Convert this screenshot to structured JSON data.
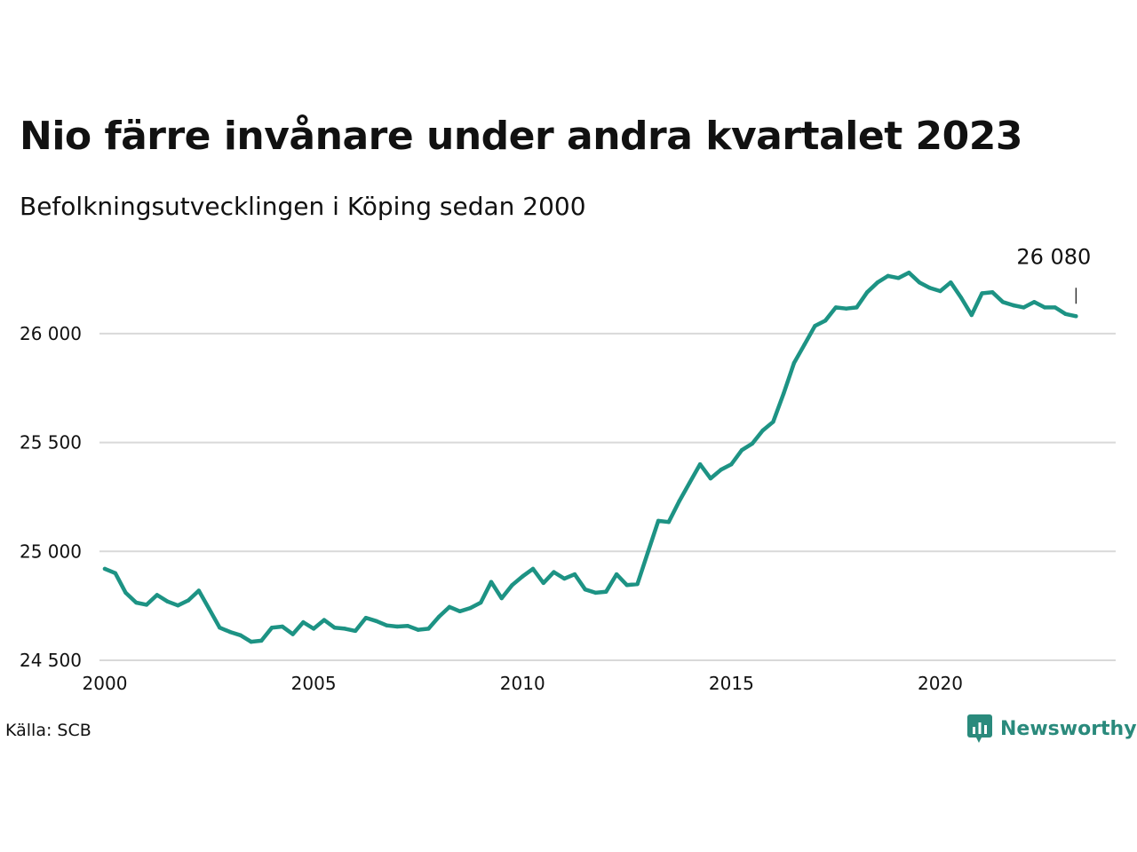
{
  "title": "Nio färre invånare under andra kvartalet 2023",
  "subtitle": "Befolkningsutvecklingen i Köping sedan 2000",
  "source": "Källa: SCB",
  "brand": {
    "name": "Newsworthy",
    "icon": "newsworthy-logo-icon",
    "color": "#2a8a7c"
  },
  "colors": {
    "line": "#1d9384",
    "grid": "#d9d9d9",
    "text": "#111111"
  },
  "chart_data": {
    "type": "line",
    "x_unit": "year (quarterly)",
    "xlim": [
      2000,
      2024.2
    ],
    "ylim": [
      24500,
      26350
    ],
    "x_ticks": [
      2000,
      2005,
      2010,
      2015,
      2020
    ],
    "x_tick_labels": [
      "2000",
      "2005",
      "2010",
      "2015",
      "2020"
    ],
    "y_ticks": [
      24500,
      25000,
      25500,
      26000
    ],
    "y_tick_labels": [
      "24 500",
      "25 000",
      "25 500",
      "26 000"
    ],
    "grid": "horizontal",
    "annotation": {
      "text": "26 080",
      "x": 2023.25,
      "y": 26080
    },
    "series": [
      {
        "x": [
          2000.0,
          2000.25,
          2000.5,
          2000.75,
          2001.0,
          2001.25,
          2001.5,
          2001.75,
          2002.0,
          2002.25,
          2002.5,
          2002.75,
          2003.0,
          2003.25,
          2003.5,
          2003.75,
          2004.0,
          2004.25,
          2004.5,
          2004.75,
          2005.0,
          2005.25,
          2005.5,
          2005.75,
          2006.0,
          2006.25,
          2006.5,
          2006.75,
          2007.0,
          2007.25,
          2007.5,
          2007.75,
          2008.0,
          2008.25,
          2008.5,
          2008.75,
          2009.0,
          2009.25,
          2009.5,
          2009.75,
          2010.0,
          2010.25,
          2010.5,
          2010.75,
          2011.0,
          2011.25,
          2011.5,
          2011.75,
          2012.0,
          2012.25,
          2012.5,
          2012.75,
          2013.0,
          2013.25,
          2013.5,
          2013.75,
          2014.0,
          2014.25,
          2014.5,
          2014.75,
          2015.0,
          2015.25,
          2015.5,
          2015.75,
          2016.0,
          2016.25,
          2016.5,
          2016.75,
          2017.0,
          2017.25,
          2017.5,
          2017.75,
          2018.0,
          2018.25,
          2018.5,
          2018.75,
          2019.0,
          2019.25,
          2019.5,
          2019.75,
          2020.0,
          2020.25,
          2020.5,
          2020.75,
          2021.0,
          2021.25,
          2021.5,
          2021.75,
          2022.0,
          2022.25,
          2022.5,
          2022.75,
          2023.0,
          2023.25
        ],
        "y": [
          24920,
          24900,
          24810,
          24765,
          24755,
          24800,
          24770,
          24752,
          24775,
          24820,
          24735,
          24650,
          24630,
          24615,
          24585,
          24590,
          24650,
          24655,
          24620,
          24675,
          24645,
          24685,
          24650,
          24645,
          24635,
          24695,
          24680,
          24660,
          24655,
          24658,
          24640,
          24645,
          24700,
          24745,
          24725,
          24740,
          24765,
          24860,
          24785,
          24845,
          24885,
          24920,
          24855,
          24905,
          24875,
          24895,
          24825,
          24810,
          24815,
          24895,
          24845,
          24850,
          24995,
          25140,
          25135,
          25230,
          25315,
          25400,
          25335,
          25375,
          25400,
          25465,
          25495,
          25555,
          25595,
          25725,
          25865,
          25950,
          26035,
          26060,
          26120,
          26115,
          26120,
          26190,
          26235,
          26265,
          26255,
          26280,
          26235,
          26210,
          26195,
          26235,
          26165,
          26085,
          26185,
          26190,
          26145,
          26130,
          26120,
          26145,
          26120,
          26120,
          26090,
          26080
        ]
      }
    ]
  }
}
